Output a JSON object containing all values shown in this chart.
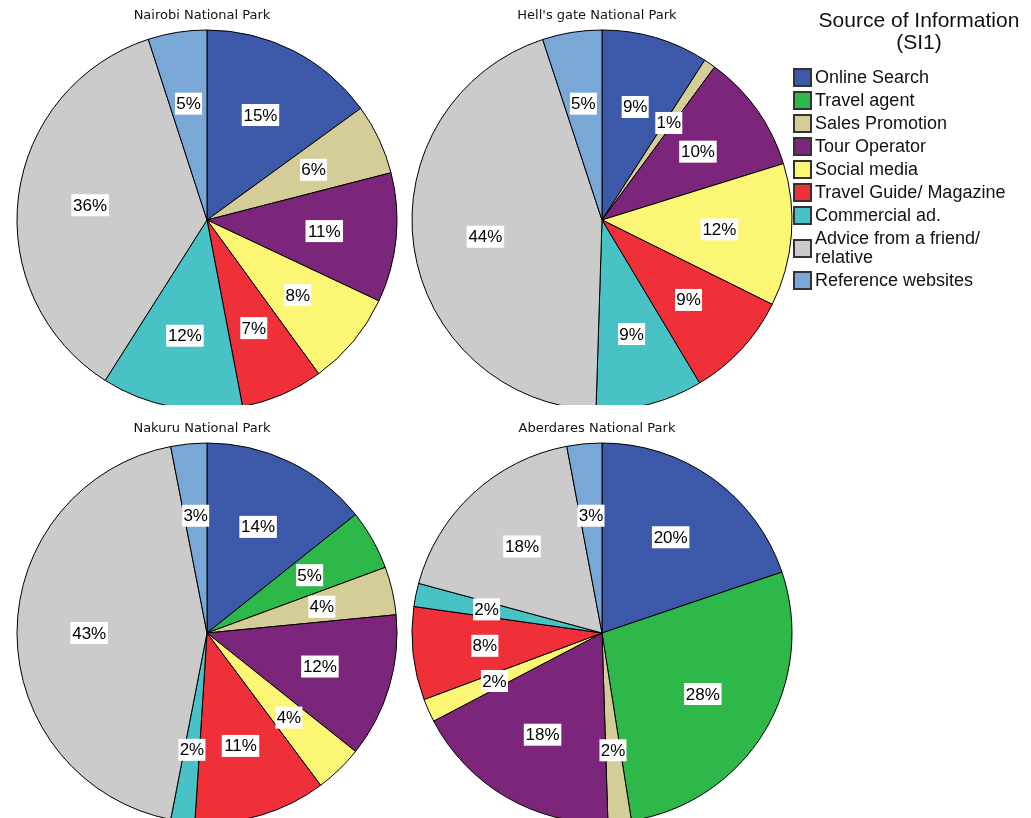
{
  "chart_data": [
    {
      "type": "pie",
      "title": "Nairobi National Park",
      "values": [
        15,
        6,
        11,
        8,
        7,
        12,
        36,
        5
      ],
      "value_labels": [
        "15%",
        "6%",
        "11%",
        "8%",
        "7%",
        "12%",
        "36%",
        "5%"
      ],
      "colors": [
        "#3c58a8",
        "#d4cd98",
        "#7b267b",
        "#fbf775",
        "#ef3039",
        "#48c2c5",
        "#cbcbcb",
        "#79a8d6"
      ]
    },
    {
      "type": "pie",
      "title": "Hell's gate National Park",
      "categories": [
        "Online Search",
        "Travel agent",
        "Sales Promotion",
        "Tour Operator",
        "Social media",
        "Travel Guide/ Magazine",
        "Commercial ad.",
        "Advice from a friend/ relative",
        "Reference websites"
      ],
      "values": [
        9,
        null,
        1,
        10,
        12,
        9,
        9,
        44,
        5
      ],
      "value_labels": [
        "9%",
        null,
        "1%",
        "10%",
        "12%",
        "9%",
        "9%",
        "44%",
        "5%"
      ],
      "colors": [
        "#3c58a8",
        "#2fb84a",
        "#d4cd98",
        "#7b267b",
        "#fbf775",
        "#ef3039",
        "#48c2c5",
        "#cbcbcb",
        "#79a8d6"
      ],
      "legend": "right",
      "legend_title": "Source of Information\n(SI1)"
    },
    {
      "type": "pie",
      "title": "Nakuru National Park",
      "values": [
        14,
        5,
        4,
        12,
        4,
        11,
        2,
        43,
        3
      ],
      "value_labels": [
        "14%",
        "5%",
        "4%",
        "12%",
        "4%",
        "11%",
        "2%",
        "43%",
        "3%"
      ],
      "colors": [
        "#3c58a8",
        "#2fb84a",
        "#d4cd98",
        "#7b267b",
        "#fbf775",
        "#ef3039",
        "#48c2c5",
        "#cbcbcb",
        "#79a8d6"
      ]
    },
    {
      "type": "pie",
      "title": "Aberdares National Park",
      "values": [
        20,
        28,
        2,
        18,
        2,
        8,
        2,
        18,
        3
      ],
      "value_labels": [
        "20%",
        "28%",
        "2%",
        "18%",
        "2%",
        "8%",
        "2%",
        "18%",
        "3%"
      ],
      "colors": [
        "#3c58a8",
        "#2fb84a",
        "#d4cd98",
        "#7b267b",
        "#fbf775",
        "#ef3039",
        "#48c2c5",
        "#cbcbcb",
        "#79a8d6"
      ]
    }
  ]
}
